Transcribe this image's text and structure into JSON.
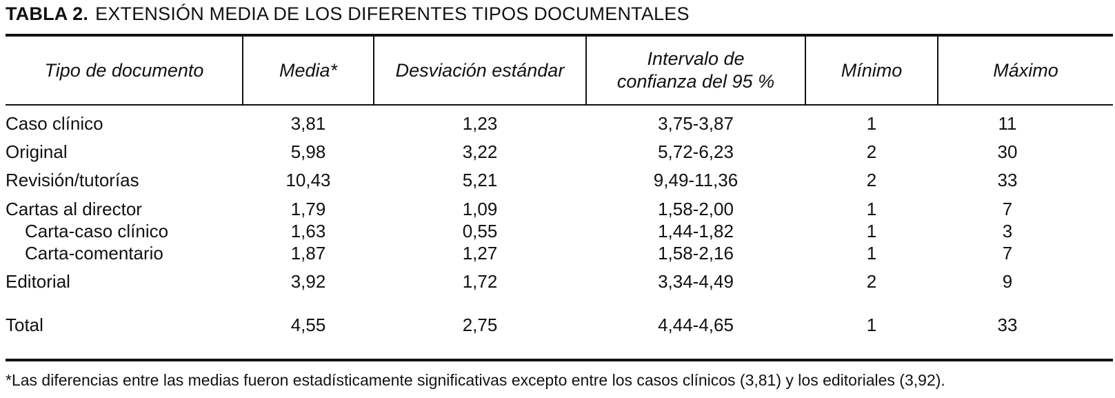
{
  "title": {
    "label": "TABLA 2.",
    "text": "EXTENSIÓN MEDIA DE LOS DIFERENTES TIPOS DOCUMENTALES"
  },
  "table": {
    "headers": [
      "Tipo de documento",
      "Media*",
      "Desviación estándar",
      "Intervalo de\nconfianza del 95 %",
      "Mínimo",
      "Máximo"
    ],
    "rows": [
      {
        "tipo": "Caso clínico",
        "media": "3,81",
        "desviacion": "1,23",
        "intervalo": "3,75-3,87",
        "minimo": "1",
        "maximo": "11",
        "indent": false
      },
      {
        "tipo": "Original",
        "media": "5,98",
        "desviacion": "3,22",
        "intervalo": "5,72-6,23",
        "minimo": "2",
        "maximo": "30",
        "indent": false
      },
      {
        "tipo": "Revisión/tutorías",
        "media": "10,43",
        "desviacion": "5,21",
        "intervalo": "9,49-11,36",
        "minimo": "2",
        "maximo": "33",
        "indent": false
      },
      {
        "tipo": "Cartas al director",
        "media": "1,79",
        "desviacion": "1,09",
        "intervalo": "1,58-2,00",
        "minimo": "1",
        "maximo": "7",
        "indent": false
      },
      {
        "tipo": "Carta-caso clínico",
        "media": "1,63",
        "desviacion": "0,55",
        "intervalo": "1,44-1,82",
        "minimo": "1",
        "maximo": "3",
        "indent": true
      },
      {
        "tipo": "Carta-comentario",
        "media": "1,87",
        "desviacion": "1,27",
        "intervalo": "1,58-2,16",
        "minimo": "1",
        "maximo": "7",
        "indent": true
      },
      {
        "tipo": "Editorial",
        "media": "3,92",
        "desviacion": "1,72",
        "intervalo": "3,34-4,49",
        "minimo": "2",
        "maximo": "9",
        "indent": false
      },
      {
        "tipo": "Total",
        "media": "4,55",
        "desviacion": "2,75",
        "intervalo": "4,44-4,65",
        "minimo": "1",
        "maximo": "33",
        "indent": false
      }
    ]
  },
  "footnote": "*Las diferencias entre las medias fueron estadísticamente significativas excepto entre los casos clínicos (3,81) y los editoriales (3,92)."
}
